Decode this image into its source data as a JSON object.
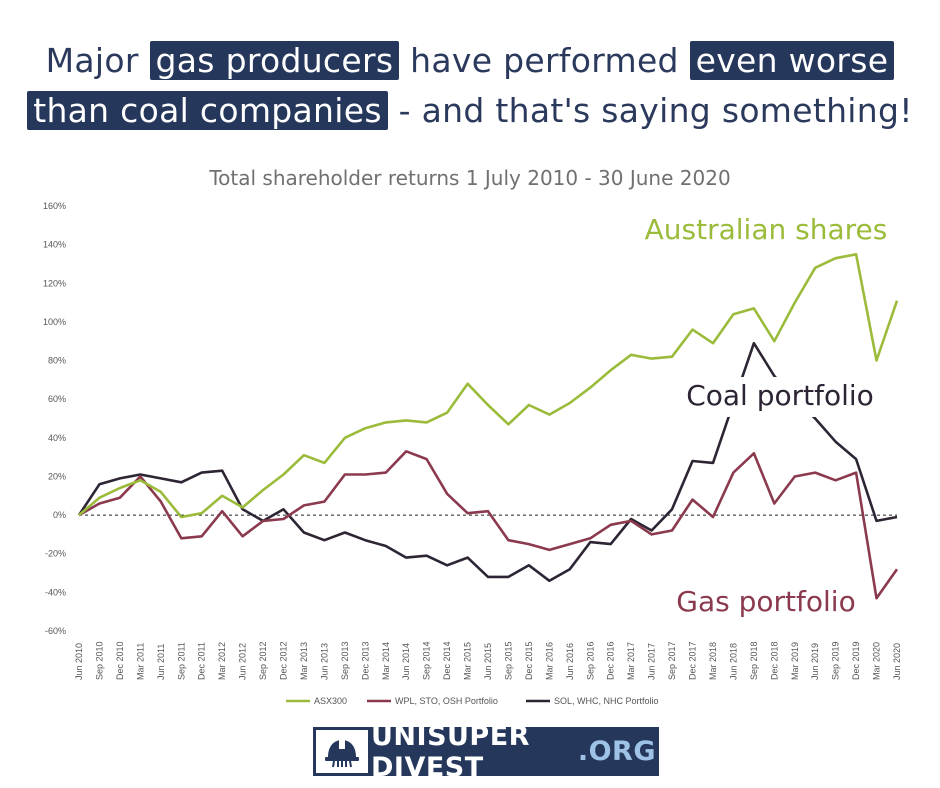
{
  "headline": {
    "part1": "Major ",
    "hl1": "gas producers",
    "part2": " have performed ",
    "hl2": "even worse",
    "hl3": "than coal companies",
    "part3": " - and that's saying something!"
  },
  "logo": {
    "main": "UNISUPER DIVEST",
    "suffix": ".ORG",
    "icon": "hard-hat-icon"
  },
  "colors": {
    "asx": "#9bbb3b",
    "gas": "#8b3a4e",
    "coal": "#2d2534",
    "headline": "#25375b"
  },
  "chart_data": {
    "type": "line",
    "title": "Total shareholder returns 1 July 2010 - 30 June 2020",
    "xlabel": "",
    "ylabel": "",
    "ylim": [
      -60,
      160
    ],
    "yticks": [
      "160%",
      "140%",
      "120%",
      "100%",
      "80%",
      "60%",
      "40%",
      "20%",
      "0%",
      "-20%",
      "-40%",
      "-60%"
    ],
    "ytick_values": [
      160,
      140,
      120,
      100,
      80,
      60,
      40,
      20,
      0,
      -20,
      -40,
      -60
    ],
    "grid": false,
    "zero_line": "dashed",
    "legend_position": "bottom",
    "x": [
      "Jun 2010",
      "Sep 2010",
      "Dec 2010",
      "Mar 2011",
      "Jun 2011",
      "Sep 2011",
      "Dec 2011",
      "Mar 2012",
      "Jun 2012",
      "Sep 2012",
      "Dec 2012",
      "Mar 2013",
      "Jun 2013",
      "Sep 2013",
      "Dec 2013",
      "Mar 2014",
      "Jun 2014",
      "Sep 2014",
      "Dec 2014",
      "Mar 2015",
      "Jun 2015",
      "Sep 2015",
      "Dec 2015",
      "Mar 2016",
      "Jun 2016",
      "Sep 2016",
      "Dec 2016",
      "Mar 2017",
      "Jun 2017",
      "Sep 2017",
      "Dec 2017",
      "Mar 2018",
      "Jun 2018",
      "Sep 2018",
      "Dec 2018",
      "Mar 2019",
      "Jun 2019",
      "Sep 2019",
      "Dec 2019",
      "Mar 2020",
      "Jun 2020"
    ],
    "series": [
      {
        "name": "ASX300",
        "color": "#9bbb3b",
        "annotation": "Australian shares",
        "values": [
          0,
          9,
          14,
          18,
          12,
          -1,
          1,
          10,
          4,
          13,
          21,
          31,
          27,
          40,
          45,
          48,
          49,
          48,
          53,
          68,
          57,
          47,
          57,
          52,
          58,
          66,
          75,
          83,
          81,
          82,
          96,
          89,
          104,
          107,
          90,
          110,
          128,
          133,
          135,
          80,
          111
        ]
      },
      {
        "name": "WPL, STO, OSH Portfolio",
        "color": "#8b3a4e",
        "annotation": "Gas portfolio",
        "values": [
          0,
          6,
          9,
          20,
          7,
          -12,
          -11,
          2,
          -11,
          -3,
          -2,
          5,
          7,
          21,
          21,
          22,
          33,
          29,
          11,
          1,
          2,
          -13,
          -15,
          -18,
          -15,
          -12,
          -5,
          -3,
          -10,
          -8,
          8,
          -1,
          22,
          32,
          6,
          20,
          22,
          18,
          22,
          -43,
          -28
        ]
      },
      {
        "name": "SOL, WHC, NHC Portfolio",
        "color": "#2d2534",
        "annotation": "Coal portfolio",
        "values": [
          0,
          16,
          19,
          21,
          19,
          17,
          22,
          23,
          3,
          -3,
          3,
          -9,
          -13,
          -9,
          -13,
          -16,
          -22,
          -21,
          -26,
          -22,
          -32,
          -32,
          -26,
          -34,
          -28,
          -14,
          -15,
          -2,
          -8,
          3,
          28,
          27,
          58,
          89,
          72,
          60,
          50,
          38,
          29,
          -3,
          -1
        ]
      }
    ]
  }
}
